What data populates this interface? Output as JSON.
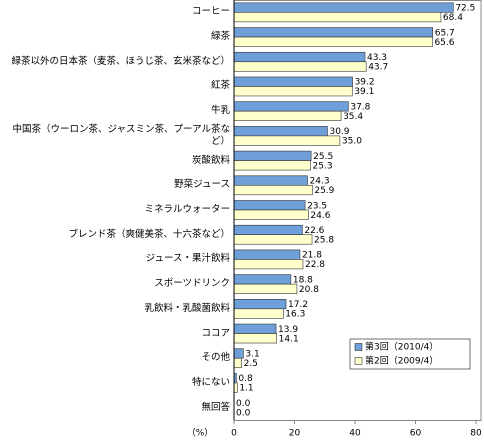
{
  "chart_data": {
    "type": "hbar",
    "categories": [
      "コーヒー",
      "緑茶",
      "緑茶以外の日本茶（麦茶、ほうじ茶、玄米茶など）",
      "紅茶",
      "牛乳",
      "中国茶（ウーロン茶、ジャスミン茶、プーアル茶など）",
      "炭酸飲料",
      "野菜ジュース",
      "ミネラルウォーター",
      "ブレンド茶（爽健美茶、十六茶など）",
      "ジュース・果汁飲料",
      "スポーツドリンク",
      "乳飲料・乳酸菌飲料",
      "ココア",
      "その他",
      "特にない",
      "無回答"
    ],
    "series": [
      {
        "name": "第3回（2010/4）",
        "color": "#6f9fd8",
        "values": [
          72.5,
          65.7,
          43.3,
          39.2,
          37.8,
          30.9,
          25.5,
          24.3,
          23.5,
          22.6,
          21.8,
          18.8,
          17.2,
          13.9,
          3.1,
          0.8,
          0
        ],
        "value_labels": [
          "72.5",
          "65.7",
          "43.3",
          "39.2",
          "37.8",
          "30.9",
          "25.5",
          "24.3",
          "23.5",
          "22.6",
          "21.8",
          "18.8",
          "17.2",
          "13.9",
          "3.1",
          "0.8",
          "0.0"
        ]
      },
      {
        "name": "第2回（2009/4）",
        "color": "#ffffcc",
        "values": [
          68.4,
          65.6,
          43.7,
          39.1,
          35.4,
          35,
          25.3,
          25.9,
          24.6,
          25.8,
          22.8,
          20.8,
          16.3,
          14.1,
          2.5,
          1.1,
          0
        ],
        "value_labels": [
          "68.4",
          "65.6",
          "43.7",
          "39.1",
          "35.4",
          "35.0",
          "25.3",
          "25.9",
          "24.6",
          "25.8",
          "22.8",
          "20.8",
          "16.3",
          "14.1",
          "2.5",
          "1.1",
          "0.0"
        ]
      }
    ],
    "x_label": "（%）",
    "xlim": [
      0,
      80
    ],
    "xticks": [
      0,
      20,
      40,
      60,
      80
    ],
    "legend": "lower right"
  }
}
